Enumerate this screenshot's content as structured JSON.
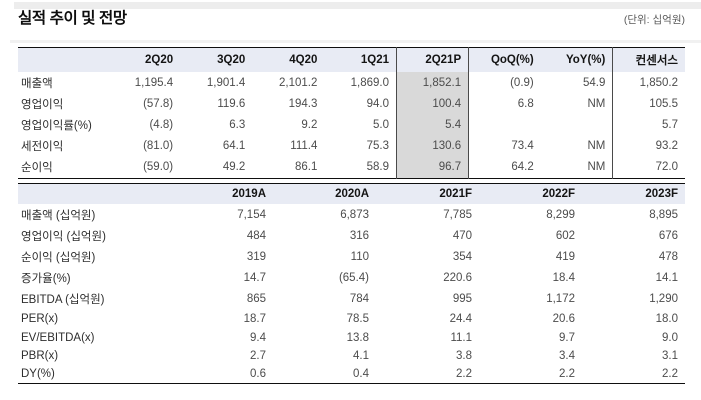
{
  "page": {
    "title": "실적 추이 및 전망",
    "unit_label": "(단위: 십억원)"
  },
  "colors": {
    "header_bg": "#e8ebf4",
    "highlight_bg": "#d9d9d9",
    "table_border": "#0f0f0f"
  },
  "quarterly_table": {
    "columns": [
      "",
      "2Q20",
      "3Q20",
      "4Q20",
      "1Q21",
      "2Q21P",
      "QoQ(%)",
      "YoY(%)",
      "컨센서스"
    ],
    "highlight_column": "2Q21P",
    "rows": [
      {
        "label": "매출액",
        "values": [
          "1,195.4",
          "1,901.4",
          "2,101.2",
          "1,869.0",
          "1,852.1",
          "(0.9)",
          "54.9",
          "1,850.2"
        ]
      },
      {
        "label": "영업이익",
        "values": [
          "(57.8)",
          "119.6",
          "194.3",
          "94.0",
          "100.4",
          "6.8",
          "NM",
          "105.5"
        ]
      },
      {
        "label": "영업이익률(%)",
        "values": [
          "(4.8)",
          "6.3",
          "9.2",
          "5.0",
          "5.4",
          "",
          "",
          "5.7"
        ]
      },
      {
        "label": "세전이익",
        "values": [
          "(81.0)",
          "64.1",
          "111.4",
          "75.3",
          "130.6",
          "73.4",
          "NM",
          "93.2"
        ]
      },
      {
        "label": "순이익",
        "values": [
          "(59.0)",
          "49.2",
          "86.1",
          "58.9",
          "96.7",
          "64.2",
          "NM",
          "72.0"
        ]
      }
    ]
  },
  "annual_table": {
    "columns": [
      "",
      "2019A",
      "2020A",
      "2021F",
      "2022F",
      "2023F"
    ],
    "rows": [
      {
        "label": "매출액 (십억원)",
        "values": [
          "7,154",
          "6,873",
          "7,785",
          "8,299",
          "8,895"
        ]
      },
      {
        "label": "영업이익 (십억원)",
        "values": [
          "484",
          "316",
          "470",
          "602",
          "676"
        ]
      },
      {
        "label": "순이익 (십억원)",
        "values": [
          "319",
          "110",
          "354",
          "419",
          "478"
        ]
      },
      {
        "label": "증가율(%)",
        "values": [
          "14.7",
          "(65.4)",
          "220.6",
          "18.4",
          "14.1"
        ]
      },
      {
        "label": "EBITDA (십억원)",
        "values": [
          "865",
          "784",
          "995",
          "1,172",
          "1,290"
        ]
      },
      {
        "label": "PER(x)",
        "values": [
          "18.7",
          "78.5",
          "24.4",
          "20.6",
          "18.0"
        ]
      },
      {
        "label": "EV/EBITDA(x)",
        "values": [
          "9.4",
          "13.8",
          "11.1",
          "9.7",
          "9.0"
        ]
      },
      {
        "label": "PBR(x)",
        "values": [
          "2.7",
          "4.1",
          "3.8",
          "3.4",
          "3.1"
        ]
      },
      {
        "label": "DY(%)",
        "values": [
          "0.6",
          "0.4",
          "2.2",
          "2.2",
          "2.2"
        ]
      }
    ]
  }
}
